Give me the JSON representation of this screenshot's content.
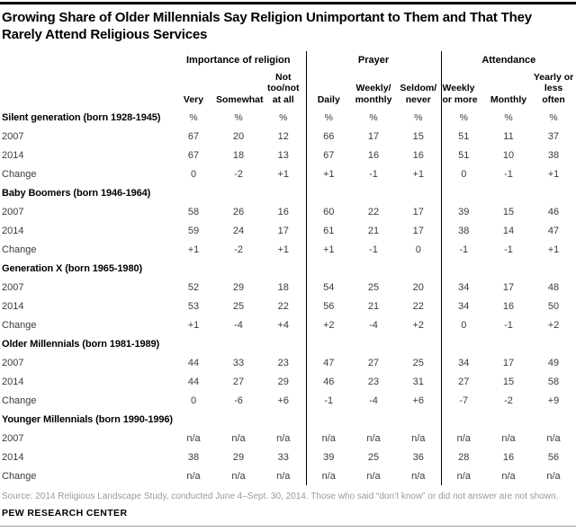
{
  "chart_data": {
    "type": "table",
    "title": "Growing Share of Older Millennials Say Religion Unimportant to Them and That They Rarely Attend Religious Services",
    "column_groups": [
      "Importance of religion",
      "Prayer",
      "Attendance"
    ],
    "columns": [
      "Very",
      "Somewhat",
      "Not\ntoo/not\nat all",
      "Daily",
      "Weekly/\nmonthly",
      "Seldom/\nnever",
      "Weekly\nor more",
      "Monthly",
      "Yearly or\nless\noften"
    ],
    "unit_symbol": "%",
    "row_blocks": [
      {
        "label": "Silent generation (born 1928-1945)",
        "show_units": true,
        "rows": [
          {
            "label": "2007",
            "values": [
              "67",
              "20",
              "12",
              "66",
              "17",
              "15",
              "51",
              "11",
              "37"
            ]
          },
          {
            "label": "2014",
            "values": [
              "67",
              "18",
              "13",
              "67",
              "16",
              "16",
              "51",
              "10",
              "38"
            ]
          },
          {
            "label": "Change",
            "values": [
              "0",
              "-2",
              "+1",
              "+1",
              "-1",
              "+1",
              "0",
              "-1",
              "+1"
            ]
          }
        ]
      },
      {
        "label": "Baby Boomers (born 1946-1964)",
        "show_units": false,
        "rows": [
          {
            "label": "2007",
            "values": [
              "58",
              "26",
              "16",
              "60",
              "22",
              "17",
              "39",
              "15",
              "46"
            ]
          },
          {
            "label": "2014",
            "values": [
              "59",
              "24",
              "17",
              "61",
              "21",
              "17",
              "38",
              "14",
              "47"
            ]
          },
          {
            "label": "Change",
            "values": [
              "+1",
              "-2",
              "+1",
              "+1",
              "-1",
              "0",
              "-1",
              "-1",
              "+1"
            ]
          }
        ]
      },
      {
        "label": "Generation X (born 1965-1980)",
        "show_units": false,
        "rows": [
          {
            "label": "2007",
            "values": [
              "52",
              "29",
              "18",
              "54",
              "25",
              "20",
              "34",
              "17",
              "48"
            ]
          },
          {
            "label": "2014",
            "values": [
              "53",
              "25",
              "22",
              "56",
              "21",
              "22",
              "34",
              "16",
              "50"
            ]
          },
          {
            "label": "Change",
            "values": [
              "+1",
              "-4",
              "+4",
              "+2",
              "-4",
              "+2",
              "0",
              "-1",
              "+2"
            ]
          }
        ]
      },
      {
        "label": "Older Millennials (born 1981-1989)",
        "show_units": false,
        "rows": [
          {
            "label": "2007",
            "values": [
              "44",
              "33",
              "23",
              "47",
              "27",
              "25",
              "34",
              "17",
              "49"
            ]
          },
          {
            "label": "2014",
            "values": [
              "44",
              "27",
              "29",
              "46",
              "23",
              "31",
              "27",
              "15",
              "58"
            ]
          },
          {
            "label": "Change",
            "values": [
              "0",
              "-6",
              "+6",
              "-1",
              "-4",
              "+6",
              "-7",
              "-2",
              "+9"
            ]
          }
        ]
      },
      {
        "label": "Younger Millennials (born 1990-1996)",
        "show_units": false,
        "rows": [
          {
            "label": "2007",
            "values": [
              "n/a",
              "n/a",
              "n/a",
              "n/a",
              "n/a",
              "n/a",
              "n/a",
              "n/a",
              "n/a"
            ]
          },
          {
            "label": "2014",
            "values": [
              "38",
              "29",
              "33",
              "39",
              "25",
              "36",
              "28",
              "16",
              "56"
            ]
          },
          {
            "label": "Change",
            "values": [
              "n/a",
              "n/a",
              "n/a",
              "n/a",
              "n/a",
              "n/a",
              "n/a",
              "n/a",
              "n/a"
            ]
          }
        ]
      }
    ]
  },
  "footer": {
    "source": "Source: 2014 Religious Landscape Study, conducted June 4–Sept. 30, 2014. Those who said “don’t know” or did not answer are not shown.",
    "brand": "PEW RESEARCH CENTER"
  },
  "colors": {
    "title": "#000000",
    "body_text": "#3b3b3b",
    "muted_text": "#9a9a9a",
    "divider": "#000000",
    "top_bar": "#000000",
    "bottom_rule": "#9e9e9e"
  }
}
